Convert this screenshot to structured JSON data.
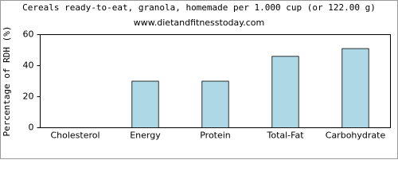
{
  "chart_data": {
    "type": "bar",
    "title": "Cereals ready-to-eat, granola, homemade per 1.000 cup (or 122.00 g)",
    "subtitle": "www.dietandfitnesstoday.com",
    "y_label": "Percentage of RDH (%)",
    "categories": [
      "Cholesterol",
      "Energy",
      "Protein",
      "Total-Fat",
      "Carbohydrate"
    ],
    "values": [
      0,
      30,
      30,
      46,
      51
    ],
    "color": "#add8e6",
    "ylim": [
      0,
      60
    ],
    "yticks": [
      0,
      20,
      40,
      60
    ],
    "grid": false
  }
}
